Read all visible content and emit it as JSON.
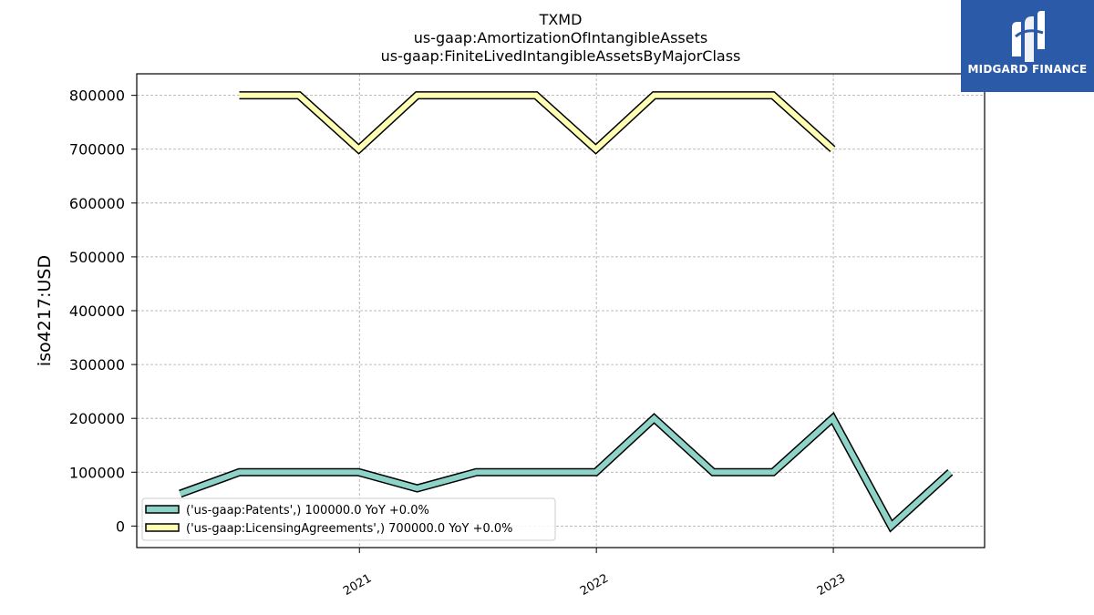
{
  "chart_data": {
    "type": "line",
    "title": [
      "TXMD",
      "us-gaap:AmortizationOfIntangibleAssets",
      "us-gaap:FiniteLivedIntangibleAssetsByMajorClass"
    ],
    "ylabel": "iso4217:USD",
    "xlabel": "",
    "ylim": [
      -40000,
      840000
    ],
    "xlim": [
      "2020-01-24",
      "2023-08-22"
    ],
    "yticks": [
      0,
      100000,
      200000,
      300000,
      400000,
      500000,
      600000,
      700000,
      800000
    ],
    "yticklabels": [
      "0",
      "100000",
      "200000",
      "300000",
      "400000",
      "500000",
      "600000",
      "700000",
      "800000"
    ],
    "xticks": [
      "2021-01-01",
      "2022-01-01",
      "2023-01-01"
    ],
    "xticklabels": [
      "2021",
      "2022",
      "2023"
    ],
    "grid": true,
    "legend_position": "lower-left",
    "series": [
      {
        "name": "('us-gaap:Patents',) 100000.0 YoY +0.0%",
        "color": "#8dd3c7",
        "points": [
          [
            "2020-03-31",
            60000
          ],
          [
            "2020-06-30",
            100000
          ],
          [
            "2020-09-30",
            100000
          ],
          [
            "2020-12-31",
            100000
          ],
          [
            "2021-03-31",
            70000
          ],
          [
            "2021-06-30",
            100000
          ],
          [
            "2021-09-30",
            100000
          ],
          [
            "2021-12-31",
            100000
          ],
          [
            "2022-03-31",
            200000
          ],
          [
            "2022-06-30",
            100000
          ],
          [
            "2022-09-30",
            100000
          ],
          [
            "2022-12-31",
            200000
          ],
          [
            "2023-03-31",
            0
          ],
          [
            "2023-06-30",
            100000
          ]
        ]
      },
      {
        "name": "('us-gaap:LicensingAgreements',) 700000.0 YoY +0.0%",
        "color": "#ffffb3",
        "points": [
          [
            "2020-06-30",
            800000
          ],
          [
            "2020-09-30",
            800000
          ],
          [
            "2020-12-31",
            700000
          ],
          [
            "2021-03-31",
            800000
          ],
          [
            "2021-06-30",
            800000
          ],
          [
            "2021-09-30",
            800000
          ],
          [
            "2021-12-31",
            700000
          ],
          [
            "2022-03-31",
            800000
          ],
          [
            "2022-06-30",
            800000
          ],
          [
            "2022-09-30",
            800000
          ],
          [
            "2022-12-31",
            700000
          ]
        ]
      }
    ]
  },
  "logo": {
    "text": "MIDGARD FINANCE",
    "background": "#2b5aa8",
    "icon": "midgard-logo-icon"
  }
}
